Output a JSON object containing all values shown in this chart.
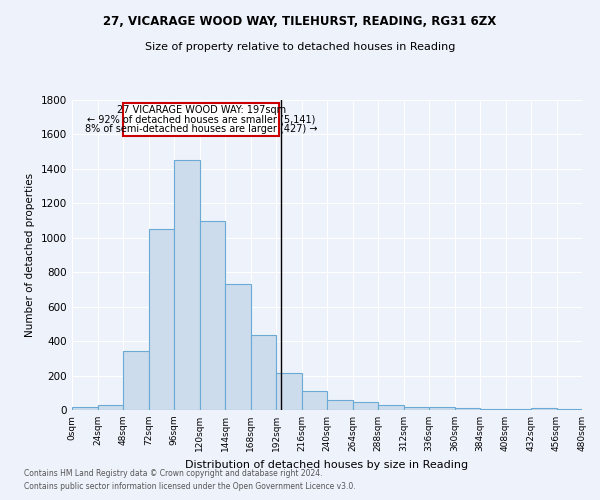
{
  "title1": "27, VICARAGE WOOD WAY, TILEHURST, READING, RG31 6ZX",
  "title2": "Size of property relative to detached houses in Reading",
  "xlabel": "Distribution of detached houses by size in Reading",
  "ylabel": "Number of detached properties",
  "bar_color": "#ccdcec",
  "bar_edge_color": "#6aaad4",
  "background_color": "#eef2fb",
  "grid_color": "#ffffff",
  "bin_edges": [
    0,
    24,
    48,
    72,
    96,
    120,
    144,
    168,
    192,
    216,
    240,
    264,
    288,
    312,
    336,
    360,
    384,
    408,
    432,
    456,
    480
  ],
  "bar_heights": [
    15,
    30,
    345,
    1050,
    1450,
    1095,
    730,
    435,
    215,
    110,
    60,
    48,
    28,
    20,
    15,
    10,
    8,
    5,
    14,
    3
  ],
  "property_size": 197,
  "annotation_title": "27 VICARAGE WOOD WAY: 197sqm",
  "annotation_line1": "← 92% of detached houses are smaller (5,141)",
  "annotation_line2": "8% of semi-detached houses are larger (427) →",
  "vline_x": 197,
  "ylim": [
    0,
    1800
  ],
  "yticks": [
    0,
    200,
    400,
    600,
    800,
    1000,
    1200,
    1400,
    1600,
    1800
  ],
  "footnote1": "Contains HM Land Registry data © Crown copyright and database right 2024.",
  "footnote2": "Contains public sector information licensed under the Open Government Licence v3.0."
}
